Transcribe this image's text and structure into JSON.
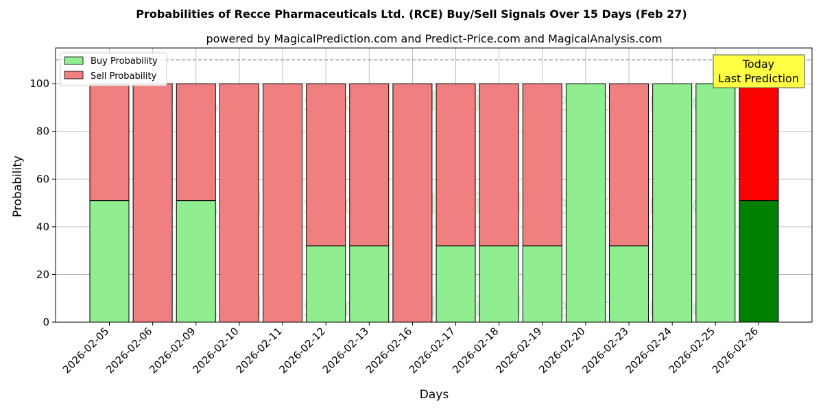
{
  "chart_data": {
    "type": "bar",
    "stacked": true,
    "title": "Probabilities of Recce Pharmaceuticals Ltd. (RCE) Buy/Sell Signals Over 15 Days (Feb 27)",
    "subtitle": "powered by MagicalPrediction.com and Predict-Price.com and MagicalAnalysis.com",
    "xlabel": "Days",
    "ylabel": "Probability",
    "ylim": [
      0,
      115
    ],
    "yticks": [
      0,
      20,
      40,
      60,
      80,
      100
    ],
    "reference_line": 110,
    "grid": true,
    "legend_position": "top-left",
    "categories": [
      "2026-02-05",
      "2026-02-06",
      "2026-02-09",
      "2026-02-10",
      "2026-02-11",
      "2026-02-12",
      "2026-02-13",
      "2026-02-16",
      "2026-02-17",
      "2026-02-18",
      "2026-02-19",
      "2026-02-20",
      "2026-02-23",
      "2026-02-24",
      "2026-02-25",
      "2026-02-26"
    ],
    "series": [
      {
        "name": "Buy Probability",
        "color": "#90ee90",
        "values": [
          51,
          0,
          51,
          0,
          0,
          32,
          32,
          0,
          32,
          32,
          32,
          100,
          32,
          100,
          100,
          51
        ]
      },
      {
        "name": "Sell Probability",
        "color": "#f08080",
        "values": [
          49,
          100,
          49,
          100,
          100,
          68,
          68,
          100,
          68,
          68,
          68,
          0,
          68,
          0,
          0,
          49
        ]
      }
    ],
    "highlight": {
      "index": 15,
      "buy_color": "#008000",
      "sell_color": "#ff0000"
    },
    "annotation": {
      "lines": [
        "Today",
        "Last Prediction"
      ],
      "background": "#ffff44"
    },
    "watermarks": [
      "MagicalAnalysis.com",
      "MagicalPrediction.com"
    ]
  }
}
